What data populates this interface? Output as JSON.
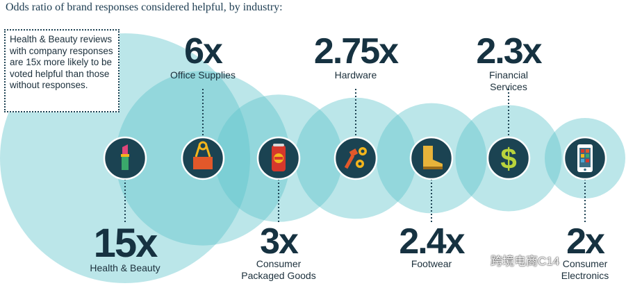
{
  "title": "Odds ratio of brand responses considered helpful, by industry:",
  "callout_text": "Health & Beauty reviews with company responses are 15x more likely to be voted helpful than those without responses.",
  "watermark": "跨境电商C14",
  "colors": {
    "bubble": "#5cc3ca",
    "bubble_alpha": 0.42,
    "icon_disc": "#1b4352",
    "icon_ring": "#ffffff",
    "text": "#163241",
    "connector": "#1c4152"
  },
  "chart_data": {
    "type": "bubble",
    "title": "Odds ratio of brand responses considered helpful, by industry:",
    "unit": "x",
    "categories": [
      "Health & Beauty",
      "Office Supplies",
      "Consumer Packaged Goods",
      "Hardware",
      "Footwear",
      "Financial Services",
      "Consumer Electronics"
    ],
    "values": [
      15,
      6,
      3,
      2.75,
      2.4,
      2.3,
      2
    ],
    "labels": [
      "15x",
      "6x",
      "3x",
      "2.75x",
      "2.4x",
      "2.3x",
      "2x"
    ],
    "icons": [
      "lipstick-icon",
      "binder-clip-icon",
      "soda-can-icon",
      "nuts-bolts-icon",
      "boot-icon",
      "dollar-sign-icon",
      "smartphone-icon"
    ],
    "legend": "none",
    "grid": false
  }
}
